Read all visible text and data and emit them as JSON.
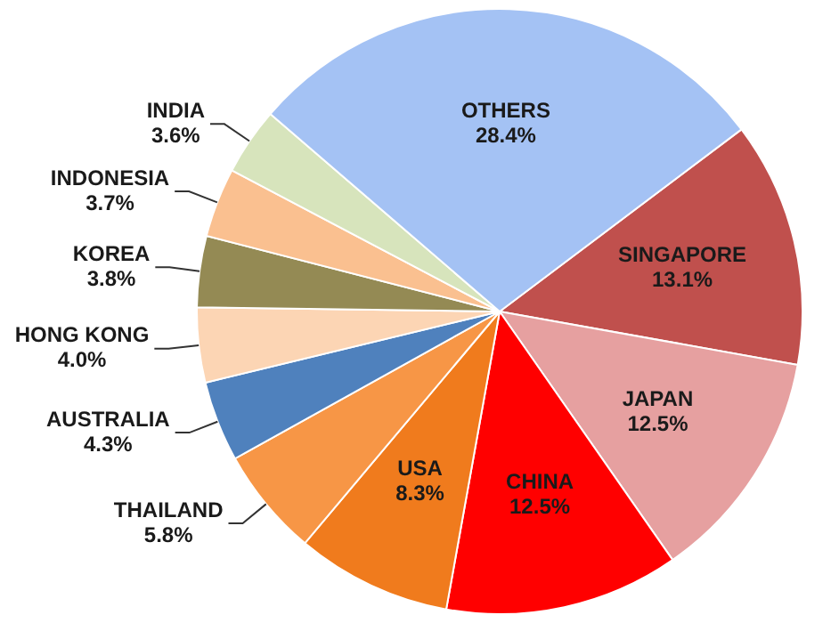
{
  "chart_data": {
    "type": "pie",
    "categories": [
      "SINGAPORE",
      "JAPAN",
      "CHINA",
      "USA",
      "THAILAND",
      "AUSTRALIA",
      "HONG KONG",
      "KOREA",
      "INDONESIA",
      "INDIA",
      "OTHERS"
    ],
    "values": [
      13.1,
      12.5,
      12.5,
      8.3,
      5.8,
      4.3,
      4.0,
      3.8,
      3.7,
      3.6,
      28.4
    ],
    "value_labels": [
      "13.1%",
      "12.5%",
      "12.5%",
      "8.3%",
      "5.8%",
      "4.3%",
      "4.0%",
      "3.8%",
      "3.7%",
      "3.6%",
      "28.4%"
    ],
    "colors": [
      "#c0504d",
      "#e6a0a0",
      "#ff0000",
      "#f07b1d",
      "#f79646",
      "#4f81bd",
      "#fcd5b4",
      "#948a54",
      "#fac090",
      "#d7e4bc",
      "#a4c2f4"
    ],
    "legend": false
  }
}
